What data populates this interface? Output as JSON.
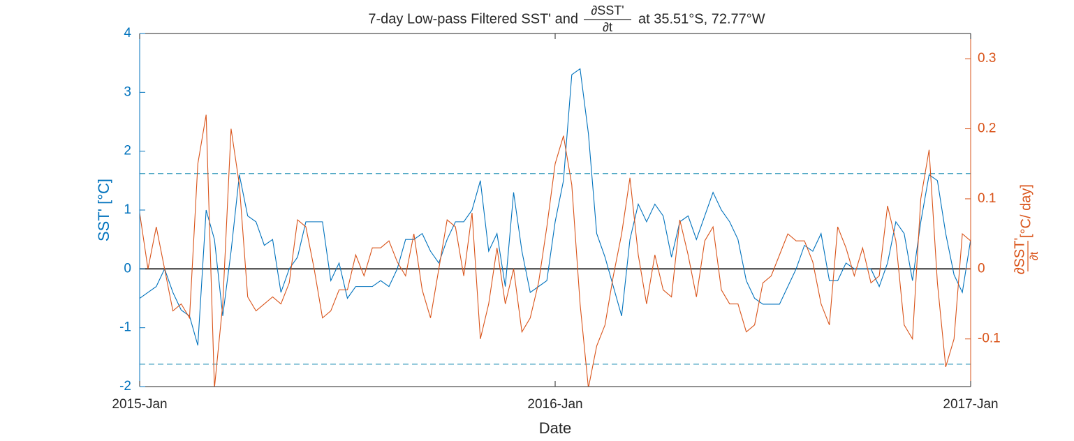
{
  "chart_data": {
    "type": "line",
    "title": {
      "before": "7-day Low-pass Filtered SST' and",
      "numerator": "∂SST'",
      "denominator": "∂t",
      "after": "at 35.51°S, 72.77°W"
    },
    "xlabel": "Date",
    "ylabel": "SST' [°C]",
    "y2label": {
      "numerator": "∂SST'",
      "denominator": "∂t",
      "after": "[°C/ day]"
    },
    "x": [
      2015,
      2015.02,
      2015.04,
      2015.06,
      2015.08,
      2015.1,
      2015.12,
      2015.14,
      2015.16,
      2015.18,
      2015.2,
      2015.22,
      2015.24,
      2015.26,
      2015.28,
      2015.3,
      2015.32,
      2015.34,
      2015.36,
      2015.38,
      2015.4,
      2015.42,
      2015.44,
      2015.46,
      2015.48,
      2015.5,
      2015.52,
      2015.54,
      2015.56,
      2015.58,
      2015.6,
      2015.62,
      2015.64,
      2015.66,
      2015.68,
      2015.7,
      2015.72,
      2015.74,
      2015.76,
      2015.78,
      2015.8,
      2015.82,
      2015.84,
      2015.86,
      2015.88,
      2015.9,
      2015.92,
      2015.94,
      2015.96,
      2015.98,
      2016,
      2016.02,
      2016.04,
      2016.06,
      2016.08,
      2016.1,
      2016.12,
      2016.14,
      2016.16,
      2016.18,
      2016.2,
      2016.22,
      2016.24,
      2016.26,
      2016.28,
      2016.3,
      2016.32,
      2016.34,
      2016.36,
      2016.38,
      2016.4,
      2016.42,
      2016.44,
      2016.46,
      2016.48,
      2016.5,
      2016.52,
      2016.54,
      2016.56,
      2016.58,
      2016.6,
      2016.62,
      2016.64,
      2016.66,
      2016.68,
      2016.7,
      2016.72,
      2016.74,
      2016.76,
      2016.78,
      2016.8,
      2016.82,
      2016.84,
      2016.86,
      2016.88,
      2016.9,
      2016.92,
      2016.94,
      2016.96,
      2016.98,
      2017
    ],
    "series": [
      {
        "name": "SST'",
        "color": "#0072BD",
        "axis": "y",
        "values": [
          -0.5,
          -0.4,
          -0.3,
          0.0,
          -0.4,
          -0.7,
          -0.8,
          -1.3,
          1.0,
          0.5,
          -0.8,
          0.3,
          1.6,
          0.9,
          0.8,
          0.4,
          0.5,
          -0.4,
          0.0,
          0.2,
          0.8,
          0.8,
          0.8,
          -0.2,
          0.1,
          -0.5,
          -0.3,
          -0.3,
          -0.3,
          -0.2,
          -0.3,
          0.0,
          0.5,
          0.5,
          0.6,
          0.3,
          0.1,
          0.5,
          0.8,
          0.8,
          1.0,
          1.5,
          0.3,
          0.6,
          -0.3,
          1.3,
          0.3,
          -0.4,
          -0.3,
          -0.2,
          0.8,
          1.5,
          3.3,
          3.4,
          2.3,
          0.6,
          0.2,
          -0.3,
          -0.8,
          0.5,
          1.1,
          0.8,
          1.1,
          0.9,
          0.2,
          0.8,
          0.9,
          0.5,
          0.9,
          1.3,
          1.0,
          0.8,
          0.5,
          -0.2,
          -0.5,
          -0.6,
          -0.6,
          -0.6,
          -0.3,
          0.0,
          0.4,
          0.3,
          0.6,
          -0.2,
          -0.2,
          0.1,
          0.0,
          0.0,
          0.0,
          -0.3,
          0.1,
          0.8,
          0.6,
          -0.2,
          0.8,
          1.6,
          1.5,
          0.6,
          -0.1,
          -0.4,
          0.5
        ]
      },
      {
        "name": "∂SST'/∂t",
        "color": "#D95319",
        "axis": "y2",
        "values": [
          0.08,
          0.0,
          0.06,
          0.0,
          -0.06,
          -0.05,
          -0.07,
          0.15,
          0.22,
          -0.17,
          -0.05,
          0.2,
          0.12,
          -0.04,
          -0.06,
          -0.05,
          -0.04,
          -0.05,
          -0.02,
          0.07,
          0.06,
          0.0,
          -0.07,
          -0.06,
          -0.03,
          -0.03,
          0.02,
          -0.01,
          0.03,
          0.03,
          0.04,
          0.01,
          -0.01,
          0.05,
          -0.03,
          -0.07,
          0.0,
          0.07,
          0.06,
          -0.01,
          0.08,
          -0.1,
          -0.05,
          0.03,
          -0.05,
          0.0,
          -0.09,
          -0.07,
          -0.02,
          0.06,
          0.15,
          0.19,
          0.12,
          -0.05,
          -0.17,
          -0.11,
          -0.08,
          -0.01,
          0.05,
          0.13,
          0.02,
          -0.05,
          0.02,
          -0.03,
          -0.04,
          0.07,
          0.02,
          -0.04,
          0.04,
          0.06,
          -0.03,
          -0.05,
          -0.05,
          -0.09,
          -0.08,
          -0.02,
          -0.01,
          0.02,
          0.05,
          0.04,
          0.04,
          0.01,
          -0.05,
          -0.08,
          0.06,
          0.03,
          -0.01,
          0.03,
          -0.02,
          -0.01,
          0.09,
          0.04,
          -0.08,
          -0.1,
          0.1,
          0.17,
          -0.02,
          -0.14,
          -0.1,
          0.05,
          0.04
        ]
      }
    ],
    "xlim": [
      2015,
      2017
    ],
    "xticks": [
      {
        "value": 2015,
        "label": "2015-Jan"
      },
      {
        "value": 2016,
        "label": "2016-Jan"
      },
      {
        "value": 2017,
        "label": "2017-Jan"
      }
    ],
    "ylim": [
      -2,
      4
    ],
    "yticks": [
      -2,
      -1,
      0,
      1,
      2,
      3,
      4
    ],
    "y2lim": [
      -0.168,
      0.336
    ],
    "y2ticks": [
      -0.1,
      0,
      0.1,
      0.2,
      0.3
    ],
    "reference_lines": {
      "values": [
        1.62,
        -1.62
      ],
      "color": "#3399BB"
    },
    "grid": false
  }
}
